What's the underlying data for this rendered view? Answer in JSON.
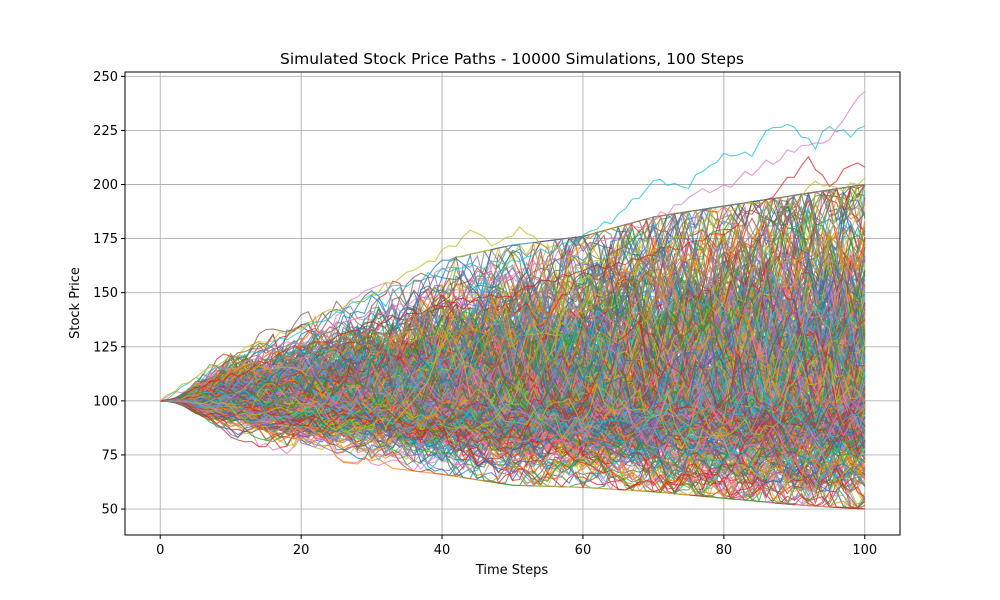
{
  "chart_data": {
    "type": "line",
    "title": "Simulated Stock Price Paths - 10000 Simulations, 100 Steps",
    "xlabel": "Time Steps",
    "ylabel": "Stock Price",
    "xlim": [
      -5,
      105
    ],
    "ylim": [
      38,
      252
    ],
    "xticks": [
      0,
      20,
      40,
      60,
      80,
      100
    ],
    "yticks": [
      50,
      75,
      100,
      125,
      150,
      175,
      200,
      225,
      250
    ],
    "grid": true,
    "legend": "none",
    "initial_price": 100,
    "steps": 100,
    "n_simulations": 10000,
    "colors": [
      "#1f77b4",
      "#ff7f0e",
      "#2ca02c",
      "#d62728",
      "#9467bd",
      "#8c564b",
      "#e377c2",
      "#7f7f7f",
      "#bcbd22",
      "#17becf"
    ],
    "envelope": {
      "x": [
        0,
        10,
        20,
        30,
        40,
        50,
        60,
        70,
        80,
        90,
        100
      ],
      "upper": [
        100,
        130,
        140,
        152,
        165,
        172,
        176,
        185,
        190,
        195,
        200
      ],
      "lower": [
        100,
        82,
        74,
        70,
        66,
        61,
        60,
        58,
        55,
        52,
        50
      ]
    },
    "highlighted_paths": [
      {
        "color": "#17becf",
        "x": [
          0,
          10,
          20,
          30,
          40,
          50,
          55,
          60,
          65,
          68,
          70,
          75,
          78,
          80,
          84,
          86,
          88,
          90,
          93,
          95,
          98,
          100
        ],
        "y": [
          100,
          118,
          132,
          148,
          160,
          165,
          170,
          175,
          185,
          195,
          202,
          200,
          210,
          213,
          215,
          225,
          228,
          225,
          218,
          228,
          222,
          227
        ]
      },
      {
        "color": "#e377c2",
        "x": [
          0,
          10,
          20,
          30,
          40,
          50,
          60,
          70,
          75,
          80,
          85,
          90,
          95,
          97,
          100
        ],
        "y": [
          100,
          115,
          128,
          140,
          150,
          158,
          170,
          183,
          195,
          198,
          208,
          216,
          222,
          230,
          243
        ]
      },
      {
        "color": "#d62728",
        "x": [
          0,
          10,
          20,
          30,
          40,
          50,
          60,
          70,
          80,
          85,
          90,
          92,
          95,
          98,
          100
        ],
        "y": [
          100,
          112,
          125,
          135,
          145,
          150,
          160,
          168,
          178,
          190,
          205,
          212,
          198,
          210,
          208
        ]
      },
      {
        "color": "#bcbd22",
        "x": [
          0,
          10,
          20,
          30,
          40,
          44,
          48,
          51,
          55,
          60,
          70,
          80,
          85,
          90,
          93,
          96,
          100
        ],
        "y": [
          100,
          120,
          135,
          150,
          168,
          177,
          172,
          181,
          172,
          165,
          170,
          185,
          193,
          190,
          203,
          197,
          203
        ]
      }
    ]
  }
}
